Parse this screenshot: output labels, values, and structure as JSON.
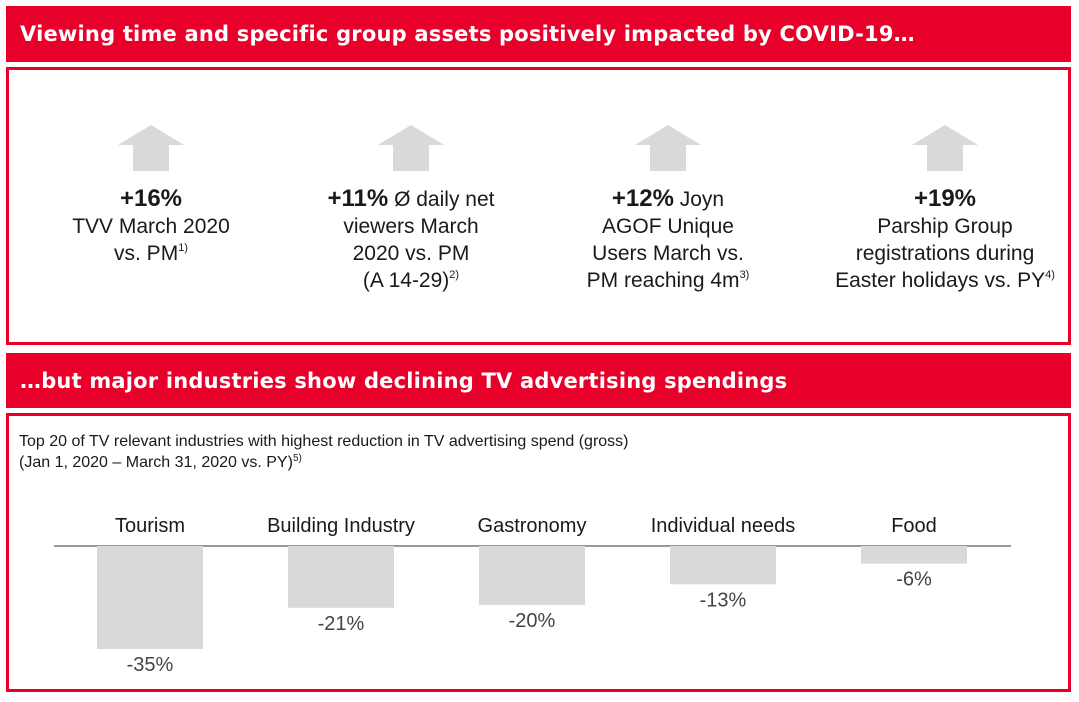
{
  "banners": {
    "top": "Viewing time and specific group assets positively impacted by COVID-19…",
    "bottom": "…but major industries show declining TV advertising spendings"
  },
  "kpis": [
    {
      "bold": "+16%",
      "line1": "",
      "line2": "TVV March 2020",
      "line3": "vs. PM",
      "footnote": "1)"
    },
    {
      "bold": "+11%",
      "line1": " Ø daily net",
      "line2": "viewers March",
      "line3": "2020 vs. PM",
      "line4": "(A 14-29)",
      "footnote": "2)"
    },
    {
      "bold": "+12%",
      "line1": " Joyn",
      "line2": "AGOF Unique",
      "line3": "Users March vs.",
      "line4": "PM reaching 4m",
      "footnote": "3)"
    },
    {
      "bold": "+19%",
      "line1": "",
      "line2": "Parship Group",
      "line3": "registrations during",
      "line4": "Easter holidays vs. PY",
      "footnote": "4)"
    }
  ],
  "colors": {
    "accent": "#e8002a",
    "bar": "#d9d9d9",
    "arrow": "#d9d9d9"
  },
  "chart_data": {
    "type": "bar",
    "title": "Top 20 of TV relevant industries with highest reduction in TV advertising spend (gross)",
    "subtitle": "(Jan 1, 2020 – March 31, 2020 vs. PY)",
    "subtitle_footnote": "5)",
    "categories": [
      "Tourism",
      "Building Industry",
      "Gastronomy",
      "Individual needs",
      "Food"
    ],
    "values": [
      -35,
      -21,
      -20,
      -13,
      -6
    ],
    "value_labels": [
      "-35%",
      "-21%",
      "-20%",
      "-13%",
      "-6%"
    ],
    "ylim": [
      -35,
      0
    ],
    "grid": false
  }
}
